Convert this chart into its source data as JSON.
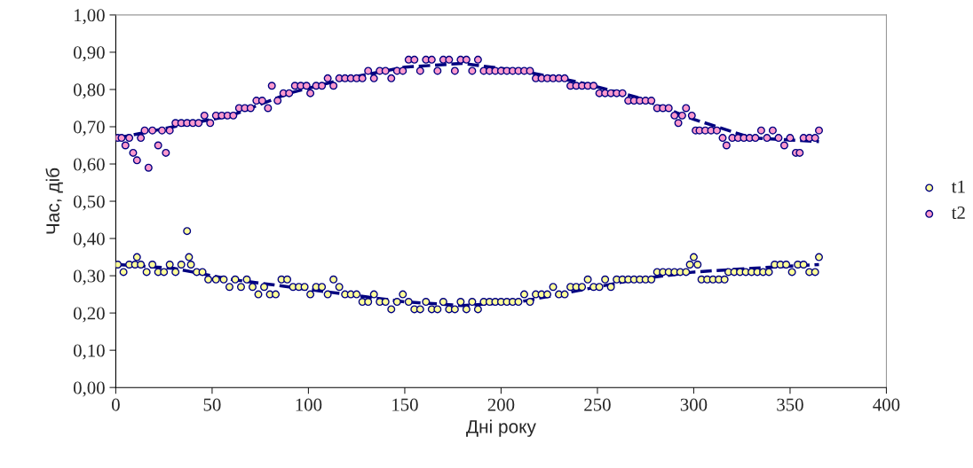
{
  "chart_data": {
    "type": "scatter",
    "xlabel": "Дні року",
    "ylabel": "Час, діб",
    "xlim": [
      0,
      400
    ],
    "xticks": [
      0,
      50,
      100,
      150,
      200,
      250,
      300,
      350,
      400
    ],
    "ylim": [
      0,
      1.0
    ],
    "yticks": [
      {
        "value": 0,
        "label": "0,00"
      },
      {
        "value": 0.1,
        "label": "0,10"
      },
      {
        "value": 0.2,
        "label": "0,20"
      },
      {
        "value": 0.3,
        "label": "0,30"
      },
      {
        "value": 0.4,
        "label": "0,40"
      },
      {
        "value": 0.5,
        "label": "0,50"
      },
      {
        "value": 0.6,
        "label": "0,60"
      },
      {
        "value": 0.7,
        "label": "0,70"
      },
      {
        "value": 0.8,
        "label": "0,80"
      },
      {
        "value": 0.9,
        "label": "0,90"
      },
      {
        "value": 1.0,
        "label": "1,00"
      }
    ],
    "grid": false,
    "legend": "right",
    "marker": "circle",
    "series": [
      {
        "type": "line",
        "marker": "none",
        "line_style": "dashed",
        "color": "#000080",
        "x": [
          1,
          30,
          60,
          90,
          120,
          150,
          180,
          210,
          240,
          270,
          300,
          330,
          365
        ],
        "values": [
          0.33,
          0.32,
          0.29,
          0.27,
          0.25,
          0.23,
          0.22,
          0.23,
          0.26,
          0.29,
          0.31,
          0.32,
          0.33
        ]
      },
      {
        "type": "line",
        "marker": "none",
        "line_style": "dashed",
        "color": "#000080",
        "x": [
          1,
          30,
          60,
          90,
          120,
          150,
          180,
          210,
          240,
          270,
          300,
          330,
          365
        ],
        "values": [
          0.67,
          0.7,
          0.73,
          0.79,
          0.83,
          0.86,
          0.87,
          0.85,
          0.82,
          0.78,
          0.72,
          0.67,
          0.66
        ]
      },
      {
        "name": "t1",
        "color": "#ffff99",
        "x": [
          1,
          4,
          7,
          10,
          11,
          13,
          16,
          19,
          22,
          25,
          28,
          31,
          34,
          37,
          38,
          39,
          42,
          45,
          48,
          52,
          56,
          59,
          62,
          65,
          68,
          71,
          74,
          77,
          80,
          83,
          86,
          89,
          92,
          95,
          98,
          101,
          104,
          107,
          110,
          113,
          116,
          119,
          122,
          125,
          128,
          131,
          134,
          137,
          140,
          143,
          146,
          149,
          152,
          155,
          158,
          161,
          164,
          167,
          170,
          173,
          176,
          179,
          182,
          185,
          188,
          191,
          194,
          197,
          200,
          203,
          206,
          209,
          212,
          215,
          218,
          221,
          224,
          227,
          230,
          233,
          236,
          239,
          242,
          245,
          248,
          251,
          254,
          257,
          260,
          263,
          266,
          269,
          272,
          275,
          278,
          281,
          284,
          287,
          290,
          293,
          296,
          298,
          300,
          302,
          304,
          307,
          310,
          313,
          316,
          318,
          321,
          324,
          327,
          330,
          333,
          336,
          339,
          342,
          345,
          348,
          351,
          354,
          357,
          360,
          363,
          365
        ],
        "values": [
          0.33,
          0.31,
          0.33,
          0.33,
          0.35,
          0.33,
          0.31,
          0.33,
          0.31,
          0.31,
          0.33,
          0.31,
          0.33,
          0.42,
          0.35,
          0.33,
          0.31,
          0.31,
          0.29,
          0.29,
          0.29,
          0.27,
          0.29,
          0.27,
          0.29,
          0.27,
          0.25,
          0.27,
          0.25,
          0.25,
          0.29,
          0.29,
          0.27,
          0.27,
          0.27,
          0.25,
          0.27,
          0.27,
          0.25,
          0.29,
          0.27,
          0.25,
          0.25,
          0.25,
          0.23,
          0.23,
          0.25,
          0.23,
          0.23,
          0.21,
          0.23,
          0.25,
          0.23,
          0.21,
          0.21,
          0.23,
          0.21,
          0.21,
          0.23,
          0.21,
          0.21,
          0.23,
          0.21,
          0.23,
          0.21,
          0.23,
          0.23,
          0.23,
          0.23,
          0.23,
          0.23,
          0.23,
          0.25,
          0.23,
          0.25,
          0.25,
          0.25,
          0.27,
          0.25,
          0.25,
          0.27,
          0.27,
          0.27,
          0.29,
          0.27,
          0.27,
          0.29,
          0.27,
          0.29,
          0.29,
          0.29,
          0.29,
          0.29,
          0.29,
          0.29,
          0.31,
          0.31,
          0.31,
          0.31,
          0.31,
          0.31,
          0.33,
          0.35,
          0.33,
          0.29,
          0.29,
          0.29,
          0.29,
          0.29,
          0.31,
          0.31,
          0.31,
          0.31,
          0.31,
          0.31,
          0.31,
          0.31,
          0.33,
          0.33,
          0.33,
          0.31,
          0.33,
          0.33,
          0.31,
          0.31,
          0.35
        ]
      },
      {
        "name": "t2",
        "color": "#ff99cc",
        "x": [
          1,
          3,
          5,
          7,
          9,
          11,
          13,
          15,
          17,
          19,
          22,
          24,
          26,
          28,
          31,
          34,
          37,
          40,
          43,
          46,
          49,
          52,
          55,
          58,
          61,
          64,
          67,
          70,
          73,
          76,
          79,
          81,
          84,
          87,
          90,
          93,
          96,
          99,
          101,
          104,
          107,
          110,
          113,
          116,
          119,
          122,
          125,
          128,
          131,
          134,
          137,
          140,
          143,
          146,
          149,
          152,
          155,
          158,
          161,
          164,
          167,
          170,
          173,
          176,
          179,
          182,
          185,
          188,
          191,
          194,
          197,
          200,
          203,
          206,
          209,
          212,
          215,
          218,
          221,
          224,
          227,
          230,
          233,
          236,
          239,
          242,
          245,
          248,
          251,
          254,
          257,
          260,
          263,
          266,
          269,
          272,
          275,
          278,
          281,
          284,
          287,
          290,
          292,
          294,
          296,
          299,
          301,
          303,
          306,
          309,
          312,
          315,
          317,
          320,
          323,
          326,
          329,
          332,
          335,
          338,
          341,
          344,
          347,
          350,
          353,
          355,
          357,
          360,
          363,
          365
        ],
        "values": [
          0.67,
          0.67,
          0.65,
          0.67,
          0.63,
          0.61,
          0.67,
          0.69,
          0.59,
          0.69,
          0.65,
          0.69,
          0.63,
          0.69,
          0.71,
          0.71,
          0.71,
          0.71,
          0.71,
          0.73,
          0.71,
          0.73,
          0.73,
          0.73,
          0.73,
          0.75,
          0.75,
          0.75,
          0.77,
          0.77,
          0.75,
          0.81,
          0.77,
          0.79,
          0.79,
          0.81,
          0.81,
          0.81,
          0.79,
          0.81,
          0.81,
          0.83,
          0.81,
          0.83,
          0.83,
          0.83,
          0.83,
          0.83,
          0.85,
          0.83,
          0.85,
          0.85,
          0.83,
          0.85,
          0.85,
          0.88,
          0.88,
          0.85,
          0.88,
          0.88,
          0.85,
          0.88,
          0.88,
          0.85,
          0.88,
          0.88,
          0.85,
          0.88,
          0.85,
          0.85,
          0.85,
          0.85,
          0.85,
          0.85,
          0.85,
          0.85,
          0.85,
          0.83,
          0.83,
          0.83,
          0.83,
          0.83,
          0.83,
          0.81,
          0.81,
          0.81,
          0.81,
          0.81,
          0.79,
          0.79,
          0.79,
          0.79,
          0.79,
          0.77,
          0.77,
          0.77,
          0.77,
          0.77,
          0.75,
          0.75,
          0.75,
          0.73,
          0.71,
          0.73,
          0.75,
          0.73,
          0.69,
          0.69,
          0.69,
          0.69,
          0.69,
          0.67,
          0.65,
          0.67,
          0.67,
          0.67,
          0.67,
          0.67,
          0.69,
          0.67,
          0.69,
          0.67,
          0.65,
          0.67,
          0.63,
          0.63,
          0.67,
          0.67,
          0.67,
          0.69
        ]
      }
    ]
  }
}
